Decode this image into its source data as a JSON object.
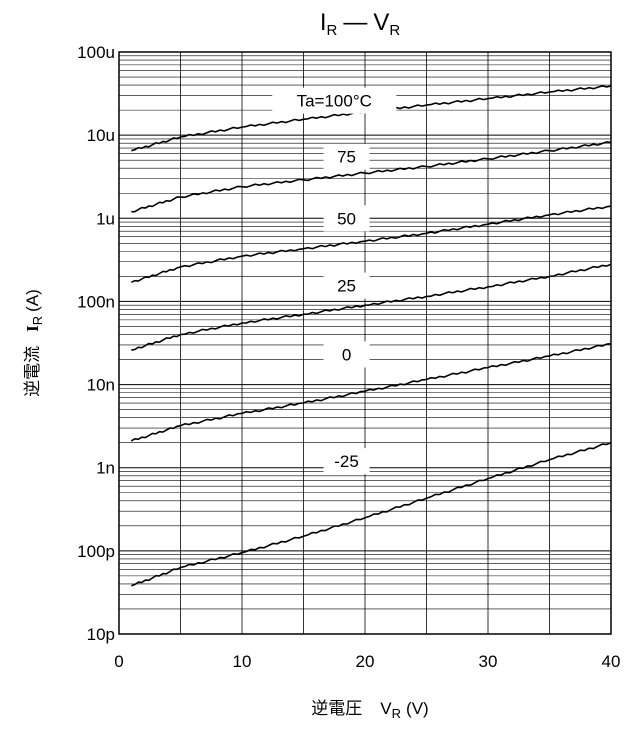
{
  "chart_data": {
    "type": "line",
    "title": {
      "main": "I",
      "sub": "R",
      "dash": "—",
      "main2": "V",
      "sub2": "R"
    },
    "xlabel": {
      "jp": "逆電圧",
      "main": "V",
      "sub": "R",
      "unit": "(V)"
    },
    "ylabel": {
      "jp": "逆電流",
      "main": "I",
      "sub": "R",
      "unit": "(A)"
    },
    "x_range": [
      0,
      40
    ],
    "x_ticks": [
      0,
      10,
      20,
      30,
      40
    ],
    "x_tick_labels": [
      "0",
      "10",
      "20",
      "30",
      "40"
    ],
    "y_scale": "log",
    "y_range": [
      1e-11,
      0.0001
    ],
    "y_ticks": [
      1e-11,
      1e-10,
      1e-09,
      1e-08,
      1e-07,
      1e-06,
      1e-05,
      0.0001
    ],
    "y_tick_labels": [
      "10p",
      "100p",
      "1n",
      "10n",
      "100n",
      "1u",
      "10u",
      "100u"
    ],
    "grid": true,
    "series": [
      {
        "name": "Ta=100°C",
        "x": [
          1,
          5,
          10,
          15,
          20,
          25,
          30,
          35,
          40
        ],
        "values": [
          6.5e-06,
          9.5e-06,
          1.25e-05,
          1.55e-05,
          1.9e-05,
          2.3e-05,
          2.75e-05,
          3.3e-05,
          3.9e-05
        ]
      },
      {
        "name": "75",
        "x": [
          1,
          5,
          10,
          15,
          20,
          25,
          30,
          35,
          40
        ],
        "values": [
          1.2e-06,
          1.8e-06,
          2.4e-06,
          2.9e-06,
          3.5e-06,
          4.2e-06,
          5.2e-06,
          6.5e-06,
          8.2e-06
        ]
      },
      {
        "name": "50",
        "x": [
          1,
          5,
          10,
          15,
          20,
          25,
          30,
          35,
          40
        ],
        "values": [
          1.7e-07,
          2.6e-07,
          3.5e-07,
          4.3e-07,
          5.3e-07,
          6.6e-07,
          8.5e-07,
          1.1e-06,
          1.4e-06
        ]
      },
      {
        "name": "25",
        "x": [
          1,
          5,
          10,
          15,
          20,
          25,
          30,
          35,
          40
        ],
        "values": [
          2.6e-08,
          4e-08,
          5.5e-08,
          7e-08,
          9e-08,
          1.15e-07,
          1.5e-07,
          2e-07,
          2.8e-07
        ]
      },
      {
        "name": "0",
        "x": [
          1,
          5,
          10,
          15,
          20,
          25,
          30,
          35,
          40
        ],
        "values": [
          2.1e-09,
          3.2e-09,
          4.5e-09,
          6e-09,
          8.3e-09,
          1.15e-08,
          1.6e-08,
          2.2e-08,
          3.1e-08
        ]
      },
      {
        "name": "-25",
        "x": [
          1,
          5,
          10,
          15,
          20,
          25,
          30,
          35,
          40
        ],
        "values": [
          3.8e-11,
          6.3e-11,
          9.5e-11,
          1.5e-10,
          2.5e-10,
          4.3e-10,
          7.4e-10,
          1.25e-09,
          2e-09
        ]
      }
    ]
  }
}
